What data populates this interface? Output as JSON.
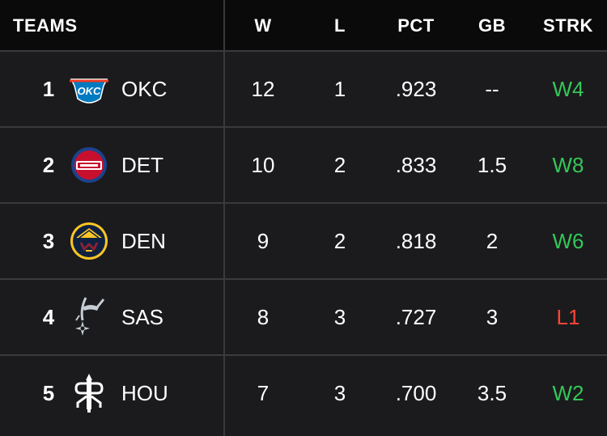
{
  "header": {
    "teams": "TEAMS",
    "w": "W",
    "l": "L",
    "pct": "PCT",
    "gb": "GB",
    "strk": "STRK"
  },
  "rows": [
    {
      "rank": "1",
      "team": "OKC",
      "logo": "thunder-logo-icon",
      "w": "12",
      "l": "1",
      "pct": ".923",
      "gb": "--",
      "strk": "W4",
      "strk_type": "win"
    },
    {
      "rank": "2",
      "team": "DET",
      "logo": "pistons-logo-icon",
      "w": "10",
      "l": "2",
      "pct": ".833",
      "gb": "1.5",
      "strk": "W8",
      "strk_type": "win"
    },
    {
      "rank": "3",
      "team": "DEN",
      "logo": "nuggets-logo-icon",
      "w": "9",
      "l": "2",
      "pct": ".818",
      "gb": "2",
      "strk": "W6",
      "strk_type": "win"
    },
    {
      "rank": "4",
      "team": "SAS",
      "logo": "spurs-logo-icon",
      "w": "8",
      "l": "3",
      "pct": ".727",
      "gb": "3",
      "strk": "L1",
      "strk_type": "loss"
    },
    {
      "rank": "5",
      "team": "HOU",
      "logo": "rockets-logo-icon",
      "w": "7",
      "l": "3",
      "pct": ".700",
      "gb": "3.5",
      "strk": "W2",
      "strk_type": "win"
    }
  ],
  "colors": {
    "background": "#1b1b1d",
    "header_background": "#0a0a0a",
    "divider": "#3a3a3c",
    "win": "#34c759",
    "loss": "#ff453a"
  }
}
